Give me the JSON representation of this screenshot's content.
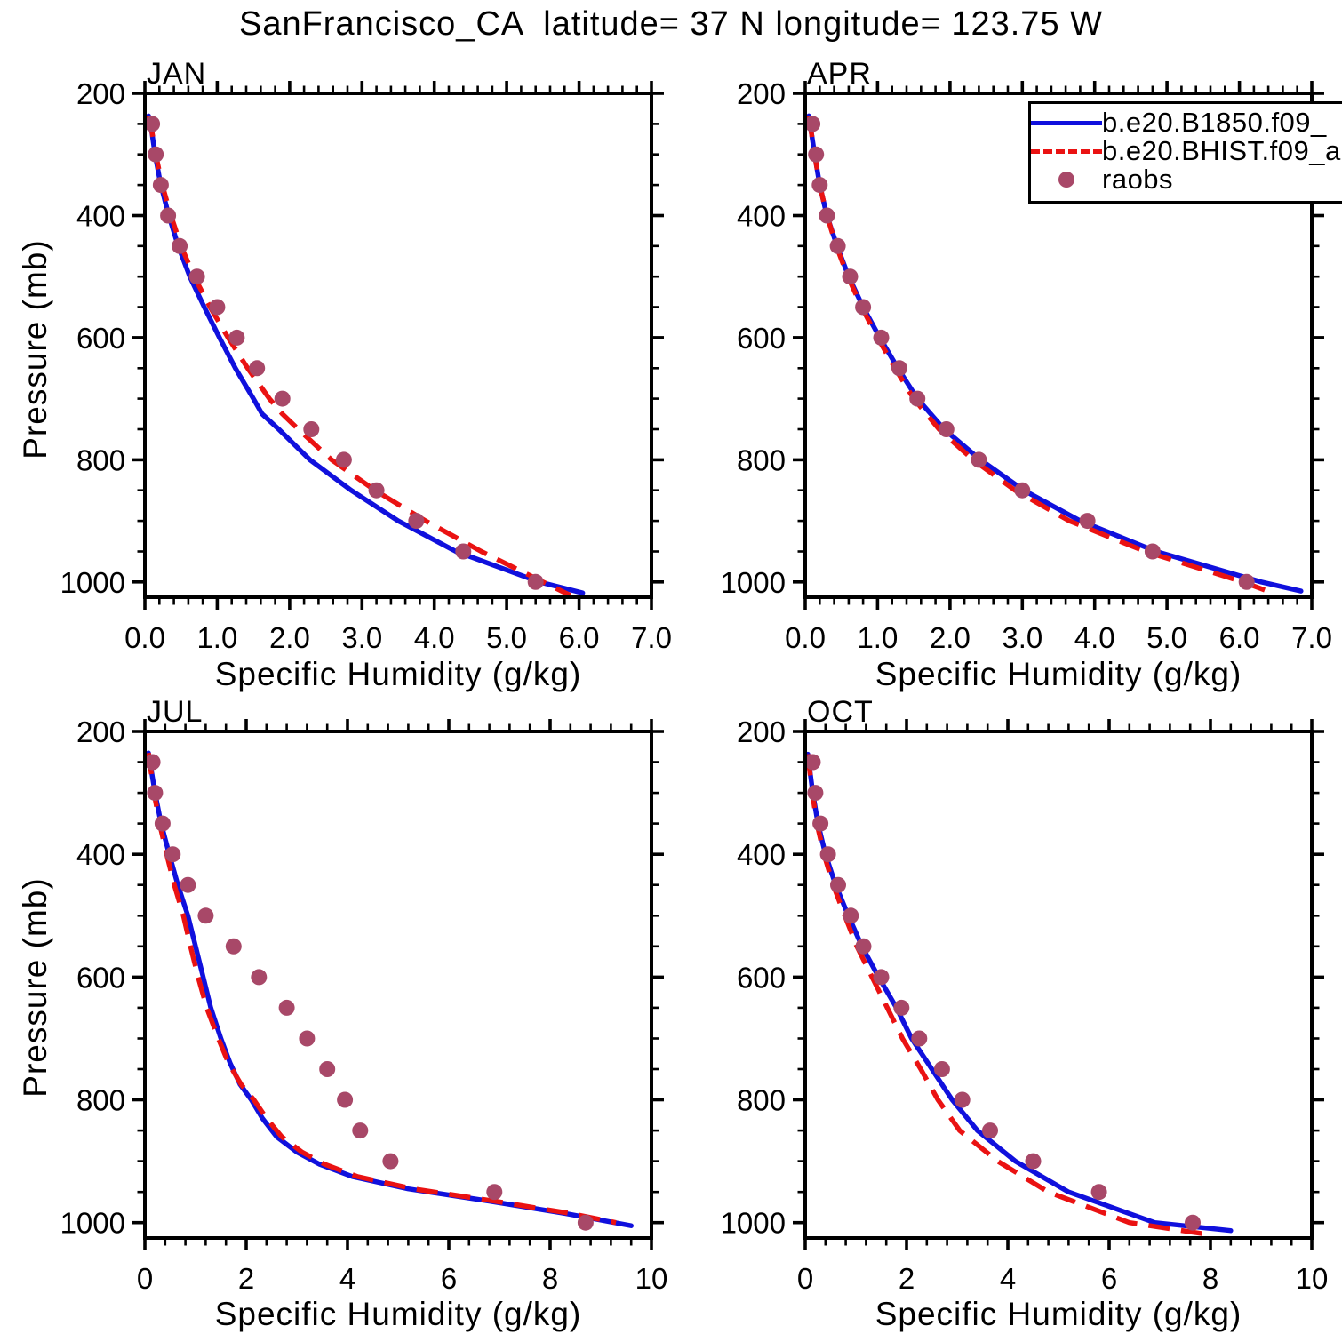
{
  "title": "SanFrancisco_CA  latitude= 37 N longitude= 123.75 W",
  "axes": {
    "xlabel": "Specific Humidity (g/kg)",
    "ylabel": "Pressure (mb)"
  },
  "legend": {
    "entries": [
      {
        "label": "b.e20.B1850.f09_",
        "type": "solid-line",
        "color": "#1010dd"
      },
      {
        "label": "b.e20.BHIST.f09_a",
        "type": "dashed-line",
        "color": "#ea1212"
      },
      {
        "label": "raobs",
        "type": "dot",
        "color": "#a84868"
      }
    ]
  },
  "chart_data": [
    {
      "type": "line",
      "title": "JAN",
      "xlabel": "Specific Humidity (g/kg)",
      "ylabel": "Pressure (mb)",
      "xlim": [
        0,
        7
      ],
      "ylim": [
        200,
        1025
      ],
      "y_axis_reversed": true,
      "grid": false,
      "xticks": [
        0,
        1,
        2,
        3,
        4,
        5,
        6,
        7
      ],
      "xtick_labels": [
        "0.0",
        "1.0",
        "2.0",
        "3.0",
        "4.0",
        "5.0",
        "6.0",
        "7.0"
      ],
      "x_minor_step": 0.2,
      "yticks": [
        200,
        400,
        600,
        800,
        1000
      ],
      "ytick_labels": [
        "200",
        "400",
        "600",
        "800",
        "1000"
      ],
      "y_minor_step": 50,
      "series": [
        {
          "name": "b.e20.B1850.f09_",
          "style": "solid",
          "color": "#1010dd",
          "pressure_mb": [
            237,
            250,
            300,
            350,
            400,
            450,
            500,
            550,
            600,
            650,
            700,
            725,
            750,
            800,
            850,
            900,
            950,
            1000,
            1018
          ],
          "q_g_per_kg": [
            0.05,
            0.08,
            0.14,
            0.22,
            0.33,
            0.46,
            0.62,
            0.82,
            1.03,
            1.25,
            1.5,
            1.62,
            1.85,
            2.28,
            2.85,
            3.5,
            4.3,
            5.45,
            6.05
          ]
        },
        {
          "name": "b.e20.BHIST.f09_a",
          "style": "dashed",
          "color": "#ea1212",
          "pressure_mb": [
            237,
            250,
            300,
            350,
            400,
            450,
            500,
            550,
            600,
            650,
            700,
            725,
            750,
            800,
            850,
            900,
            950,
            1000,
            1022
          ],
          "q_g_per_kg": [
            0.05,
            0.08,
            0.15,
            0.24,
            0.36,
            0.5,
            0.68,
            0.9,
            1.15,
            1.42,
            1.72,
            1.9,
            2.12,
            2.58,
            3.18,
            3.88,
            4.65,
            5.5,
            5.88
          ]
        },
        {
          "name": "raobs",
          "style": "dots",
          "color": "#a84868",
          "pressure_mb": [
            250,
            300,
            350,
            400,
            450,
            500,
            550,
            600,
            650,
            700,
            750,
            800,
            850,
            900,
            950,
            1000
          ],
          "q_g_per_kg": [
            0.1,
            0.15,
            0.22,
            0.32,
            0.48,
            0.72,
            1.0,
            1.27,
            1.55,
            1.9,
            2.3,
            2.75,
            3.2,
            3.75,
            4.4,
            5.4
          ]
        }
      ]
    },
    {
      "type": "line",
      "title": "APR",
      "xlabel": "Specific Humidity (g/kg)",
      "ylabel": "Pressure (mb)",
      "xlim": [
        0,
        7
      ],
      "ylim": [
        200,
        1025
      ],
      "y_axis_reversed": true,
      "grid": false,
      "xticks": [
        0,
        1,
        2,
        3,
        4,
        5,
        6,
        7
      ],
      "xtick_labels": [
        "0.0",
        "1.0",
        "2.0",
        "3.0",
        "4.0",
        "5.0",
        "6.0",
        "7.0"
      ],
      "x_minor_step": 0.2,
      "yticks": [
        200,
        400,
        600,
        800,
        1000
      ],
      "ytick_labels": [
        "200",
        "400",
        "600",
        "800",
        "1000"
      ],
      "y_minor_step": 50,
      "series": [
        {
          "name": "b.e20.B1850.f09_",
          "style": "solid",
          "color": "#1010dd",
          "pressure_mb": [
            237,
            300,
            350,
            400,
            450,
            500,
            550,
            600,
            650,
            700,
            750,
            800,
            850,
            900,
            950,
            1000,
            1015
          ],
          "q_g_per_kg": [
            0.05,
            0.13,
            0.2,
            0.3,
            0.44,
            0.6,
            0.8,
            1.03,
            1.28,
            1.55,
            1.92,
            2.42,
            3.02,
            3.8,
            4.85,
            6.3,
            6.85
          ]
        },
        {
          "name": "b.e20.BHIST.f09_a",
          "style": "dashed",
          "color": "#ea1212",
          "pressure_mb": [
            237,
            300,
            350,
            400,
            450,
            500,
            550,
            600,
            650,
            700,
            750,
            800,
            850,
            900,
            950,
            1000,
            1019
          ],
          "q_g_per_kg": [
            0.05,
            0.13,
            0.2,
            0.3,
            0.43,
            0.59,
            0.78,
            1.0,
            1.24,
            1.5,
            1.85,
            2.32,
            2.9,
            3.65,
            4.7,
            6.05,
            6.48
          ]
        },
        {
          "name": "raobs",
          "style": "dots",
          "color": "#a84868",
          "pressure_mb": [
            250,
            300,
            350,
            400,
            450,
            500,
            550,
            600,
            650,
            700,
            750,
            800,
            850,
            900,
            950,
            1000
          ],
          "q_g_per_kg": [
            0.1,
            0.15,
            0.2,
            0.3,
            0.45,
            0.62,
            0.8,
            1.05,
            1.3,
            1.55,
            1.95,
            2.4,
            3.0,
            3.9,
            4.8,
            6.1
          ]
        }
      ]
    },
    {
      "type": "line",
      "title": "JUL",
      "xlabel": "Specific Humidity (g/kg)",
      "ylabel": "Pressure (mb)",
      "xlim": [
        0,
        10
      ],
      "ylim": [
        200,
        1025
      ],
      "y_axis_reversed": true,
      "grid": false,
      "xticks": [
        0,
        2,
        4,
        6,
        8,
        10
      ],
      "xtick_labels": [
        "0",
        "2",
        "4",
        "6",
        "8",
        "10"
      ],
      "x_minor_step": 0.4,
      "yticks": [
        200,
        400,
        600,
        800,
        1000
      ],
      "ytick_labels": [
        "200",
        "400",
        "600",
        "800",
        "1000"
      ],
      "y_minor_step": 50,
      "series": [
        {
          "name": "b.e20.B1850.f09_",
          "style": "solid",
          "color": "#1010dd",
          "pressure_mb": [
            235,
            300,
            350,
            400,
            450,
            500,
            550,
            600,
            650,
            700,
            740,
            775,
            800,
            830,
            860,
            885,
            905,
            925,
            945,
            965,
            985,
            1005
          ],
          "q_g_per_kg": [
            0.07,
            0.2,
            0.32,
            0.48,
            0.65,
            0.85,
            1.0,
            1.15,
            1.3,
            1.5,
            1.68,
            1.88,
            2.1,
            2.32,
            2.6,
            3.0,
            3.45,
            4.1,
            5.2,
            6.8,
            8.3,
            9.6
          ]
        },
        {
          "name": "b.e20.BHIST.f09_a",
          "style": "dashed",
          "color": "#ea1212",
          "pressure_mb": [
            235,
            300,
            350,
            400,
            450,
            500,
            550,
            600,
            650,
            700,
            740,
            775,
            800,
            830,
            860,
            885,
            905,
            925,
            945,
            965,
            985,
            1000
          ],
          "q_g_per_kg": [
            0.07,
            0.18,
            0.29,
            0.43,
            0.58,
            0.76,
            0.9,
            1.05,
            1.22,
            1.45,
            1.65,
            1.9,
            2.15,
            2.4,
            2.7,
            3.1,
            3.55,
            4.2,
            5.3,
            6.9,
            8.4,
            9.3
          ]
        },
        {
          "name": "raobs",
          "style": "dots",
          "color": "#a84868",
          "pressure_mb": [
            250,
            300,
            350,
            400,
            450,
            500,
            550,
            600,
            650,
            700,
            750,
            800,
            850,
            900,
            950,
            1000
          ],
          "q_g_per_kg": [
            0.15,
            0.2,
            0.35,
            0.55,
            0.85,
            1.2,
            1.75,
            2.25,
            2.8,
            3.2,
            3.6,
            3.95,
            4.25,
            4.85,
            6.9,
            8.7
          ]
        }
      ]
    },
    {
      "type": "line",
      "title": "OCT",
      "xlabel": "Specific Humidity (g/kg)",
      "ylabel": "Pressure (mb)",
      "xlim": [
        0,
        10
      ],
      "ylim": [
        200,
        1025
      ],
      "y_axis_reversed": true,
      "grid": false,
      "xticks": [
        0,
        2,
        4,
        6,
        8,
        10
      ],
      "xtick_labels": [
        "0",
        "2",
        "4",
        "6",
        "8",
        "10"
      ],
      "x_minor_step": 0.4,
      "yticks": [
        200,
        400,
        600,
        800,
        1000
      ],
      "ytick_labels": [
        "200",
        "400",
        "600",
        "800",
        "1000"
      ],
      "y_minor_step": 50,
      "series": [
        {
          "name": "b.e20.B1850.f09_",
          "style": "solid",
          "color": "#1010dd",
          "pressure_mb": [
            237,
            300,
            350,
            400,
            450,
            500,
            550,
            600,
            650,
            700,
            750,
            800,
            850,
            900,
            950,
            1000,
            1013
          ],
          "q_g_per_kg": [
            0.05,
            0.15,
            0.25,
            0.4,
            0.6,
            0.85,
            1.12,
            1.45,
            1.8,
            2.1,
            2.5,
            2.9,
            3.4,
            4.15,
            5.2,
            6.9,
            8.4
          ]
        },
        {
          "name": "b.e20.BHIST.f09_a",
          "style": "dashed",
          "color": "#ea1212",
          "pressure_mb": [
            237,
            300,
            350,
            400,
            450,
            500,
            550,
            600,
            650,
            700,
            750,
            800,
            850,
            900,
            950,
            1000,
            1018
          ],
          "q_g_per_kg": [
            0.05,
            0.14,
            0.23,
            0.37,
            0.55,
            0.78,
            1.02,
            1.32,
            1.62,
            1.92,
            2.28,
            2.62,
            3.05,
            3.8,
            4.8,
            6.4,
            7.85
          ]
        },
        {
          "name": "raobs",
          "style": "dots",
          "color": "#a84868",
          "pressure_mb": [
            250,
            300,
            350,
            400,
            450,
            500,
            550,
            600,
            650,
            700,
            750,
            800,
            850,
            900,
            950,
            1000
          ],
          "q_g_per_kg": [
            0.15,
            0.2,
            0.3,
            0.45,
            0.65,
            0.9,
            1.15,
            1.5,
            1.9,
            2.25,
            2.7,
            3.1,
            3.65,
            4.5,
            5.8,
            7.65
          ]
        }
      ]
    }
  ]
}
